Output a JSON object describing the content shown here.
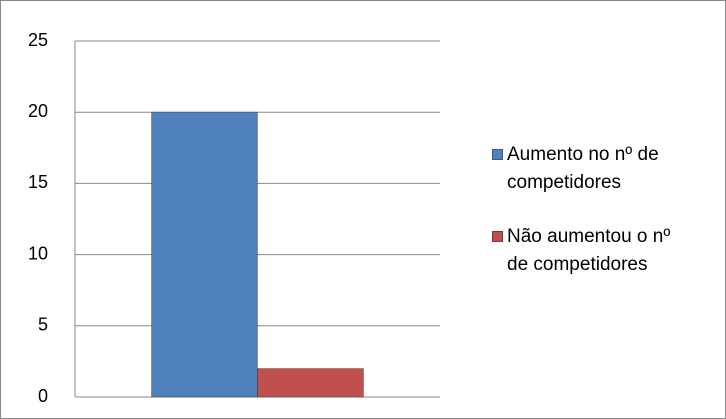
{
  "chart_data": {
    "type": "bar",
    "categories": [
      null
    ],
    "series": [
      {
        "name": "Aumento no nº de competidores",
        "color": "#4f81bd",
        "values": [
          20
        ]
      },
      {
        "name": "Não aumentou o nº de competidores",
        "color": "#c0504d",
        "values": [
          2
        ]
      }
    ],
    "ylim": [
      0,
      25
    ],
    "yticks": [
      0,
      5,
      10,
      15,
      20,
      25
    ],
    "grid": true,
    "legend": "right"
  }
}
